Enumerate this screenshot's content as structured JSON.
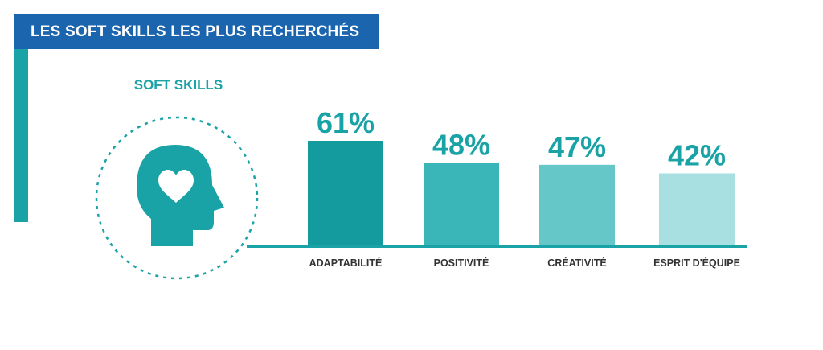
{
  "header": {
    "title": "LES SOFT SKILLS LES PLUS RECHERCHÉS"
  },
  "section": {
    "label": "SOFT SKILLS"
  },
  "icons": {
    "main": "head-heart-icon"
  },
  "colors": {
    "accent": "#1aa3a6",
    "title_band": "#1b64ae",
    "label_text": "#333333",
    "bars": [
      "#139b9e",
      "#3ab5b8",
      "#66c7c9",
      "#a8dfe0"
    ]
  },
  "chart_data": {
    "type": "bar",
    "title": "LES SOFT SKILLS LES PLUS RECHERCHÉS",
    "categories": [
      "ADAPTABILITÉ",
      "POSITIVITÉ",
      "CRÉATIVITÉ",
      "ESPRIT D'ÉQUIPE"
    ],
    "values": [
      61,
      48,
      47,
      42
    ],
    "value_labels": [
      "61%",
      "48%",
      "47%",
      "42%"
    ],
    "unit": "%",
    "ylim": [
      0,
      100
    ],
    "grid": false,
    "legend": "none"
  }
}
